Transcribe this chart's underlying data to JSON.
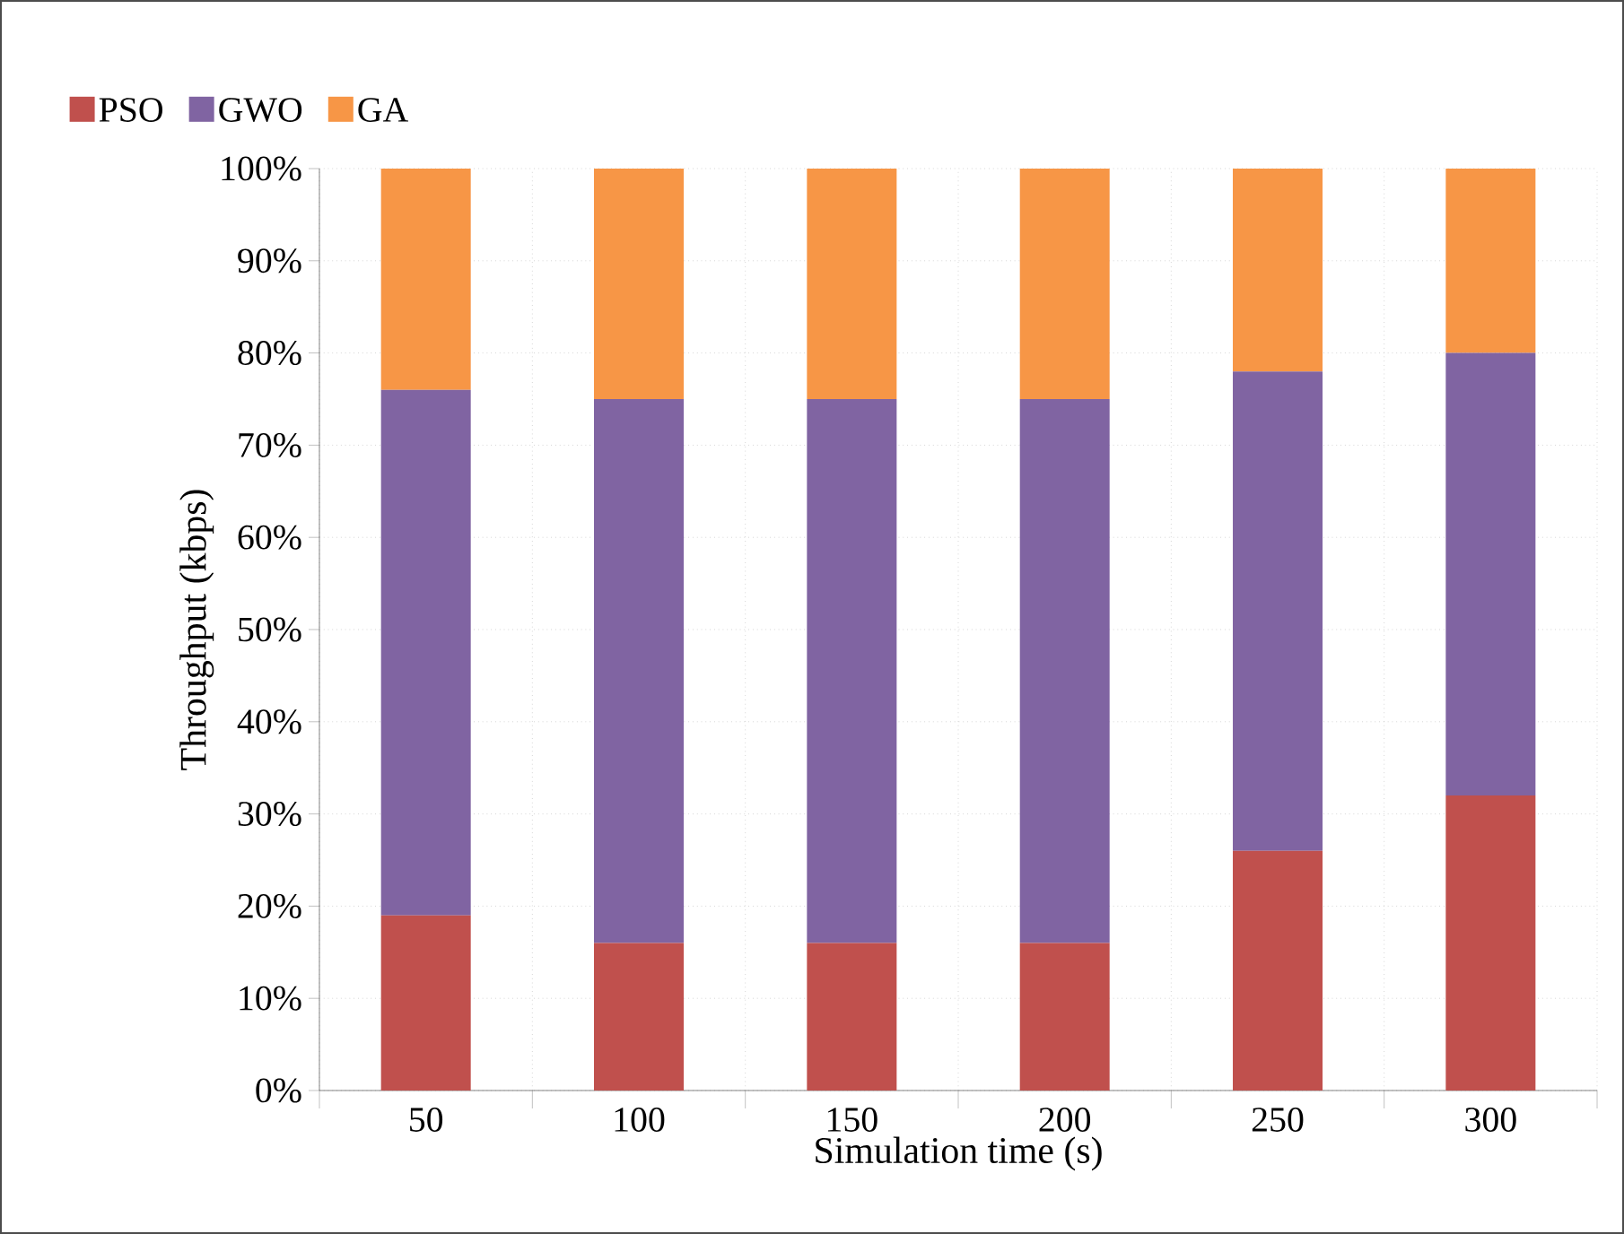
{
  "chart_data": {
    "type": "bar",
    "stacked": true,
    "xlabel": "Simulation time (s)",
    "ylabel": "Throughput  (kbps)",
    "categories": [
      "50",
      "100",
      "150",
      "200",
      "250",
      "300"
    ],
    "series": [
      {
        "name": "PSO",
        "color": "#c0504d",
        "values": [
          19,
          16,
          16,
          16,
          26,
          32
        ]
      },
      {
        "name": "GWO",
        "color": "#8064a2",
        "values": [
          57,
          59,
          59,
          59,
          52,
          48
        ]
      },
      {
        "name": "GA",
        "color": "#f79646",
        "values": [
          24,
          25,
          25,
          25,
          22,
          20
        ]
      }
    ],
    "ylim": [
      0,
      100
    ],
    "yticks": [
      {
        "value": 0,
        "label": "0%"
      },
      {
        "value": 10,
        "label": "10%"
      },
      {
        "value": 20,
        "label": "20%"
      },
      {
        "value": 30,
        "label": "30%"
      },
      {
        "value": 40,
        "label": "40%"
      },
      {
        "value": 50,
        "label": "50%"
      },
      {
        "value": 60,
        "label": "60%"
      },
      {
        "value": 70,
        "label": "70%"
      },
      {
        "value": 80,
        "label": "80%"
      },
      {
        "value": 90,
        "label": "90%"
      },
      {
        "value": 100,
        "label": "100%"
      }
    ],
    "grid": true,
    "legend": "top left"
  }
}
